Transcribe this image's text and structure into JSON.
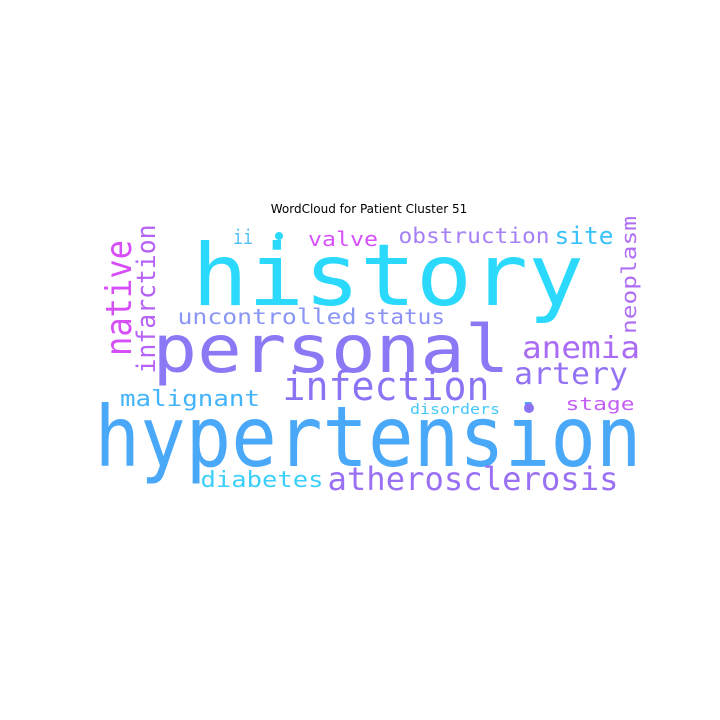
{
  "title": "WordCloud for Patient Cluster 51",
  "words": [
    {
      "text": "history",
      "color": "#2ad9fb"
    },
    {
      "text": "personal",
      "color": "#8a78f5"
    },
    {
      "text": "hypertension",
      "color": "#4aa8f9"
    },
    {
      "text": "infection",
      "color": "#8c73f4"
    },
    {
      "text": "atherosclerosis",
      "color": "#9a70f4"
    },
    {
      "text": "native",
      "color": "#d74ef8"
    },
    {
      "text": "infarction",
      "color": "#b662f6"
    },
    {
      "text": "anemia",
      "color": "#aa6bf5"
    },
    {
      "text": "artery",
      "color": "#9472f5"
    },
    {
      "text": "uncontrolled",
      "color": "#8a96f6"
    },
    {
      "text": "status",
      "color": "#8c90f6"
    },
    {
      "text": "obstruction",
      "color": "#a680f5"
    },
    {
      "text": "site",
      "color": "#38c2fb"
    },
    {
      "text": "neoplasm",
      "color": "#b06ef5"
    },
    {
      "text": "malignant",
      "color": "#43b4f9"
    },
    {
      "text": "diabetes",
      "color": "#3dcffb"
    },
    {
      "text": "valve",
      "color": "#d553f8"
    },
    {
      "text": "ii",
      "color": "#4fc0fa"
    },
    {
      "text": "stage",
      "color": "#c45cf6"
    },
    {
      "text": "disorders",
      "color": "#44c8fa"
    }
  ]
}
